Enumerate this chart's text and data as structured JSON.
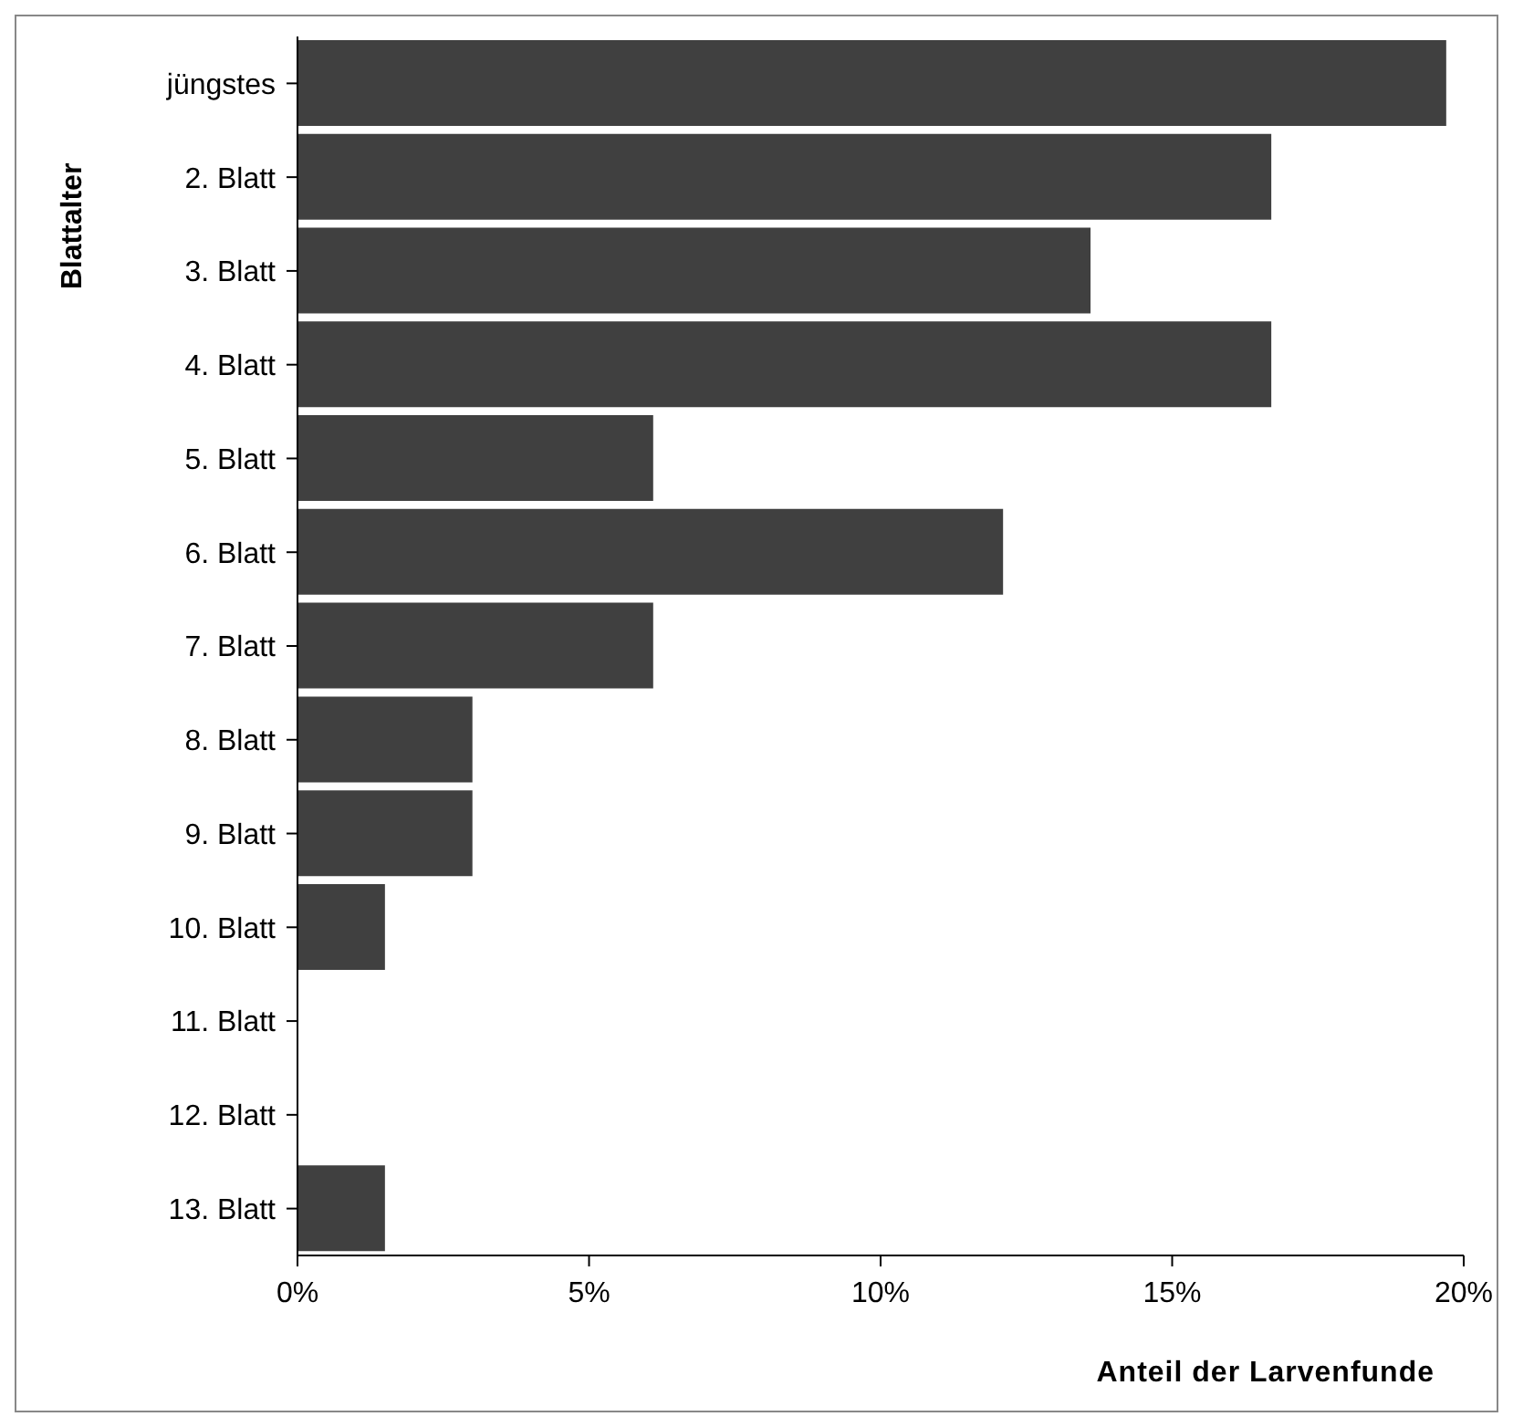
{
  "chart_data": {
    "type": "bar",
    "orientation": "horizontal",
    "xlabel": "Anteil der Larvenfunde",
    "ylabel": "Blattalter",
    "categories": [
      "jüngstes",
      "2. Blatt",
      "3. Blatt",
      "4. Blatt",
      "5. Blatt",
      "6. Blatt",
      "7. Blatt",
      "8. Blatt",
      "9. Blatt",
      "10. Blatt",
      "11. Blatt",
      "12. Blatt",
      "13. Blatt"
    ],
    "values": [
      19.7,
      16.7,
      13.6,
      16.7,
      6.1,
      12.1,
      6.1,
      3.0,
      3.0,
      1.5,
      0,
      0,
      1.5
    ],
    "color": "#404040",
    "xlim": [
      0,
      20
    ],
    "xticks": [
      {
        "value": 0,
        "label": "0%"
      },
      {
        "value": 5,
        "label": "5%"
      },
      {
        "value": 10,
        "label": "10%"
      },
      {
        "value": 15,
        "label": "15%"
      },
      {
        "value": 20,
        "label": "20%"
      }
    ],
    "grid": false,
    "legend": false
  }
}
